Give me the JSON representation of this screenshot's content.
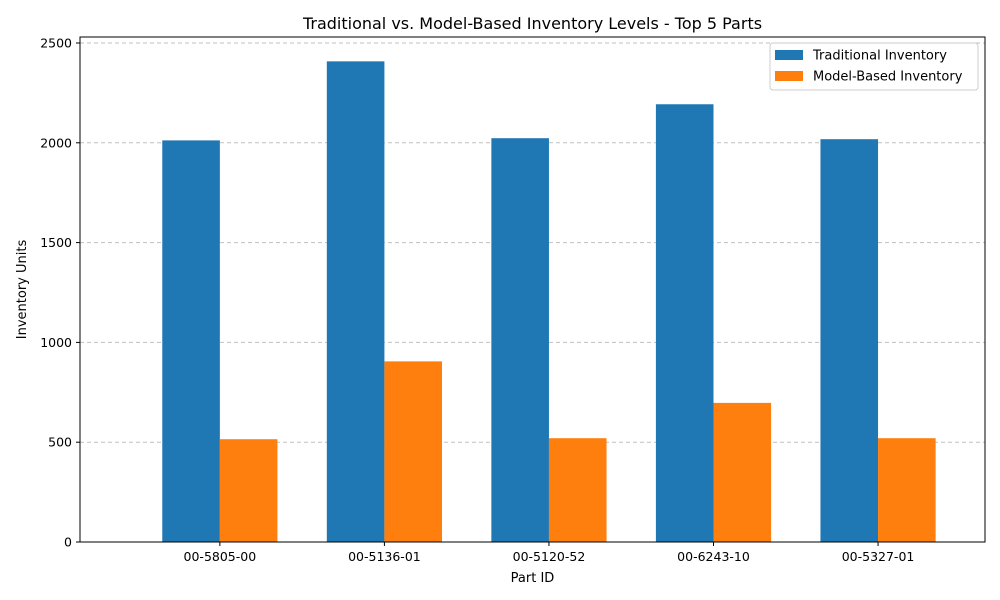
{
  "chart_data": {
    "type": "bar",
    "title": "Traditional vs. Model-Based Inventory Levels - Top 5 Parts",
    "xlabel": "Part ID",
    "ylabel": "Inventory Units",
    "categories": [
      "00-5805-00",
      "00-5136-01",
      "00-5120-52",
      "00-6243-10",
      "00-5327-01"
    ],
    "series": [
      {
        "name": "Traditional Inventory",
        "color": "#1f77b4",
        "values": [
          2012,
          2408,
          2023,
          2193,
          2018
        ]
      },
      {
        "name": "Model-Based Inventory",
        "color": "#ff7f0e",
        "values": [
          515,
          905,
          520,
          697,
          520
        ]
      }
    ],
    "ylim": [
      0,
      2530
    ],
    "yticks": [
      0,
      500,
      1000,
      1500,
      2000,
      2500
    ],
    "ytick_labels": [
      "0",
      "500",
      "1000",
      "1500",
      "2000",
      "2500"
    ],
    "grid": "y-dashed",
    "legend_position": "top-right"
  }
}
